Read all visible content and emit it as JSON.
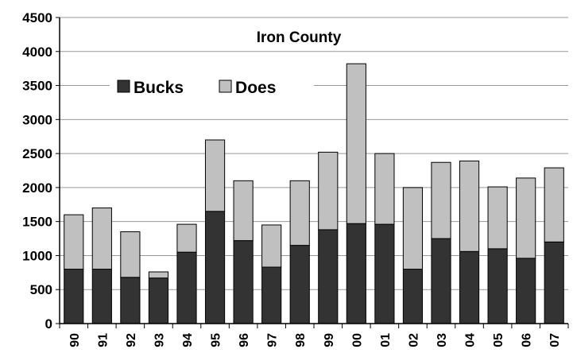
{
  "chart_data": {
    "type": "stacked-bar",
    "title": "Iron County",
    "categories": [
      "90",
      "91",
      "92",
      "93",
      "94",
      "95",
      "96",
      "97",
      "98",
      "99",
      "00",
      "01",
      "02",
      "03",
      "04",
      "05",
      "06",
      "07"
    ],
    "series": [
      {
        "name": "Bucks",
        "color": "#333333",
        "values": [
          800,
          800,
          680,
          670,
          1050,
          1650,
          1220,
          830,
          1150,
          1380,
          1470,
          1460,
          800,
          1250,
          1060,
          1100,
          960,
          1200
        ]
      },
      {
        "name": "Does",
        "color": "#c0c0c0",
        "values": [
          800,
          900,
          670,
          90,
          410,
          1050,
          880,
          620,
          950,
          1140,
          2350,
          1040,
          1200,
          1120,
          1330,
          910,
          1180,
          1090
        ]
      }
    ],
    "ylim": [
      0,
      4500
    ],
    "yticks": [
      0,
      500,
      1000,
      1500,
      2000,
      2500,
      3000,
      3500,
      4000,
      4500
    ],
    "grid": true
  }
}
